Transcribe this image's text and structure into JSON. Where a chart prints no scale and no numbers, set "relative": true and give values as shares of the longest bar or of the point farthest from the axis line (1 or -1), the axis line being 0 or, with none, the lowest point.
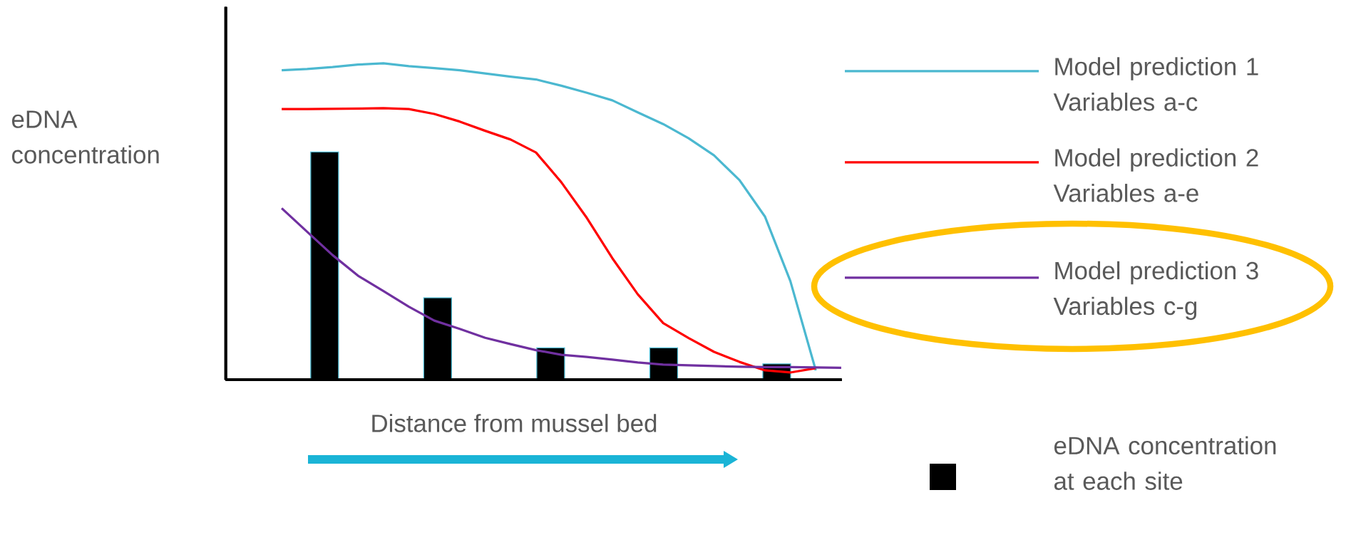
{
  "chart_data": [
    {
      "type": "bar",
      "relative": true,
      "xlabel": "Distance from mussel bed",
      "ylabel": "eDNA concentration",
      "categories": [
        null,
        null,
        null,
        null,
        null
      ],
      "legend": "right",
      "series": [
        {
          "name": "eDNA concentration at each site",
          "color": "#000000",
          "values": [
            1,
            0.36,
            0.14,
            0.14,
            0.07
          ]
        }
      ]
    },
    {
      "type": "line",
      "relative": true,
      "categories": [
        null,
        null,
        null,
        null,
        null,
        null,
        null,
        null,
        null,
        null,
        null,
        null,
        null,
        null,
        null,
        null,
        null,
        null,
        null,
        null,
        null,
        null
      ],
      "legend": "right",
      "marker": "none",
      "line_style": "solid",
      "series": [
        {
          "name": "Model prediction 1 Variables a-c",
          "color": "#4bb8d0",
          "values": [
            0.978,
            0.982,
            0.988,
            0.996,
            1.0,
            0.991,
            0.985,
            0.978,
            0.968,
            0.958,
            0.949,
            0.929,
            0.907,
            0.883,
            0.845,
            0.808,
            0.763,
            0.709,
            0.631,
            0.516,
            0.312,
            0.03
          ]
        }
      ]
    },
    {
      "type": "line",
      "relative": true,
      "categories": [
        null,
        null,
        null,
        null,
        null,
        null,
        null,
        null,
        null,
        null,
        null,
        null,
        null,
        null,
        null,
        null,
        null,
        null,
        null,
        null,
        null,
        null
      ],
      "legend": "right",
      "marker": "none",
      "line_style": "solid",
      "series": [
        {
          "name": "Model prediction 2 Variables a-e",
          "color": "#ff0000",
          "values": [
            0.997,
            0.997,
            0.998,
            0.999,
            1,
            0.997,
            0.979,
            0.951,
            0.917,
            0.885,
            0.837,
            0.727,
            0.596,
            0.448,
            0.315,
            0.209,
            0.154,
            0.103,
            0.066,
            0.035,
            0.027,
            0.043
          ]
        }
      ]
    },
    {
      "type": "line",
      "relative": true,
      "categories": [
        null,
        null,
        null,
        null,
        null,
        null,
        null,
        null,
        null,
        null,
        null,
        null,
        null,
        null,
        null,
        null,
        null,
        null,
        null,
        null,
        null,
        null,
        null
      ],
      "legend": "right",
      "marker": "none",
      "line_style": "solid",
      "series": [
        {
          "name": "Model prediction 3 Variables c-g",
          "color": "#7030a0",
          "values": [
            1,
            0.863,
            0.727,
            0.607,
            0.517,
            0.426,
            0.345,
            0.297,
            0.245,
            0.208,
            0.173,
            0.146,
            0.133,
            0.118,
            0.101,
            0.089,
            0.085,
            0.081,
            0.076,
            0.074,
            0.074,
            0.072,
            0.07
          ]
        }
      ]
    }
  ]
}
